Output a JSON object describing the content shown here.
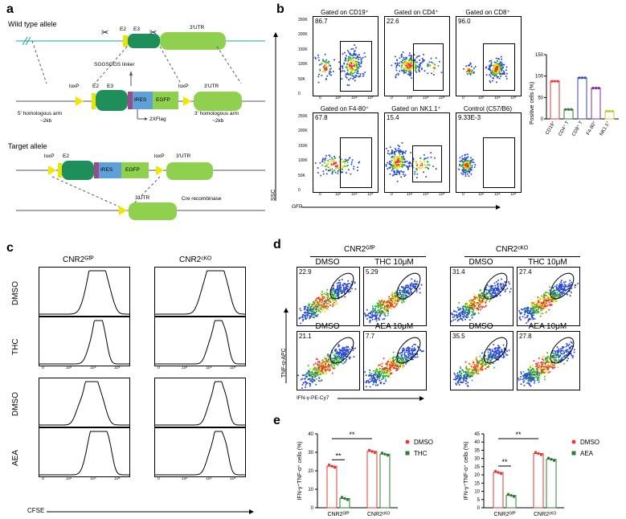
{
  "panels": {
    "a": "a",
    "b": "b",
    "c": "c",
    "d": "d",
    "e": "e"
  },
  "a": {
    "wt_label": "Wild type allele",
    "e2": "E2",
    "e3": "E3",
    "utr": "3'UTR",
    "linker": "SGGSGGS linker",
    "loxp": "loxP",
    "ires": "IRES",
    "egfp": "EGFP",
    "flag": "2XFlag",
    "arm5": "5' homologous arm",
    "arm5_size": "~2kb",
    "arm3": "3' homologous arm",
    "arm3_size": "~2kb",
    "target_label": "Target allele",
    "cre": "Cre recombinase"
  },
  "b": {
    "yaxis": "SSC",
    "xaxis": "GFP",
    "plots": [
      {
        "title": "Gated on CD19⁺",
        "value": "86.7"
      },
      {
        "title": "Gated on CD4⁺",
        "value": "22.6"
      },
      {
        "title": "Gated on CD8⁺",
        "value": "96.0"
      },
      {
        "title": "Gated on F4-80⁺",
        "value": "67.8"
      },
      {
        "title": "Gated on NK1.1⁺",
        "value": "15.4"
      },
      {
        "title": "Control (C57/B6)",
        "value": "9.33E-3"
      }
    ],
    "ticks_y": [
      "250K",
      "200K",
      "150K",
      "100K",
      "50K",
      "0"
    ],
    "ticks_x": [
      "0",
      "10³",
      "10⁴",
      "10⁵"
    ],
    "bar_ylabel": "Positive cells (%)",
    "bar_yticks": [
      "0",
      "50",
      "100",
      "150"
    ],
    "bar_cats": [
      "CD19⁺",
      "CD4⁺ T",
      "CD8⁺ T",
      "F4-80⁺",
      "NK1.1⁺"
    ],
    "bar_values": [
      88,
      22,
      96,
      72,
      18
    ],
    "bar_colors": [
      "#e53935",
      "#2e7d32",
      "#3949ab",
      "#8e24aa",
      "#c0ca33"
    ]
  },
  "c": {
    "col1": "CNR2ᴳᶠᴾ",
    "col2": "CNR2ᶜᴷᴼ",
    "rows": [
      "DMSO",
      "THC",
      "DMSO",
      "AEA"
    ],
    "xaxis": "CFSE",
    "ticks": [
      "0",
      "10³",
      "10⁴",
      "10⁵"
    ]
  },
  "d": {
    "group1": "CNR2ᴳᶠᴾ",
    "group2": "CNR2ᶜᴷᴼ",
    "yaxis": "TNF-α-APC",
    "xaxis": "IFN-γ-PE-Cy7",
    "plots": [
      {
        "label": "DMSO",
        "value": "22.9"
      },
      {
        "label": "THC 10μM",
        "value": "5.29"
      },
      {
        "label": "DMSO",
        "value": "31.4"
      },
      {
        "label": "THC 10μM",
        "value": "27.4"
      },
      {
        "label": "DMSO",
        "value": "21.1"
      },
      {
        "label": "AEA 10μM",
        "value": "7.7"
      },
      {
        "label": "DMSO",
        "value": "35.5"
      },
      {
        "label": "AEA 10μM",
        "value": "27.8"
      }
    ]
  },
  "e": {
    "ylabel": "IFN-γ⁺TNF-α⁺ cells (%)",
    "yticks": [
      "0",
      "10",
      "20",
      "30",
      "40"
    ],
    "yticks2": [
      "0",
      "5",
      "10",
      "15",
      "20",
      "25",
      "30",
      "35",
      "40",
      "45"
    ],
    "cats": [
      "CNR2ᴳᶠᴾ",
      "CNR2ᶜᴷᴼ"
    ],
    "sig": "**",
    "left": {
      "legend": [
        "DMSO",
        "THC"
      ],
      "values": [
        [
          22.5,
          5.0
        ],
        [
          30.5,
          29.0
        ]
      ]
    },
    "right": {
      "legend": [
        "DMSO",
        "AEA"
      ],
      "values": [
        [
          21.5,
          7.5
        ],
        [
          33.0,
          29.5
        ]
      ]
    },
    "colors": {
      "dmso": "#e53935",
      "treat": "#2e7d32"
    }
  }
}
